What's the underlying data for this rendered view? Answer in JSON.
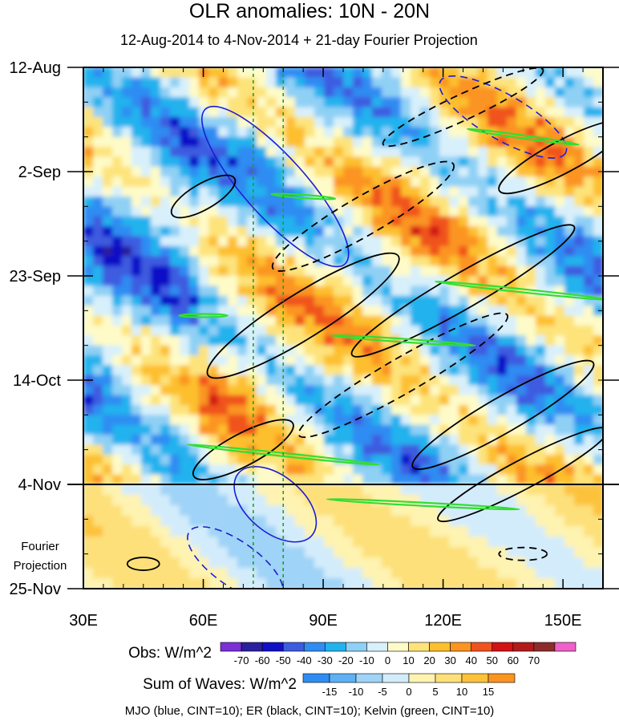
{
  "chart_data": {
    "type": "heatmap",
    "title": "OLR anomalies: 10N - 20N",
    "subtitle": "12-Aug-2014 to 4-Nov-2014 + 21-day Fourier Projection",
    "x_ticks": [
      {
        "value": 30,
        "label": "30E"
      },
      {
        "value": 60,
        "label": "60E"
      },
      {
        "value": 90,
        "label": "90E"
      },
      {
        "value": 120,
        "label": "120E"
      },
      {
        "value": 150,
        "label": "150E"
      }
    ],
    "xlim": [
      30,
      160
    ],
    "y_ticks": [
      {
        "value": 0,
        "label": "12-Aug"
      },
      {
        "value": 21,
        "label": "2-Sep"
      },
      {
        "value": 42,
        "label": "23-Sep"
      },
      {
        "value": 63,
        "label": "14-Oct"
      },
      {
        "value": 84,
        "label": "4-Nov"
      },
      {
        "value": 105,
        "label": "25-Nov"
      }
    ],
    "ylim": [
      0,
      105
    ],
    "projection_start_day": 84,
    "projection_label": [
      "Fourier",
      "Projection"
    ],
    "reference_lines_lon": [
      72.5,
      80
    ],
    "obs_colorbar": {
      "label": "Obs: W/m^2",
      "levels": [
        -70,
        -60,
        -50,
        -40,
        -30,
        -20,
        -10,
        0,
        10,
        20,
        30,
        40,
        50,
        60,
        70
      ],
      "colors": [
        "#7b2fd6",
        "#2a1f9e",
        "#1010c8",
        "#3c5ce0",
        "#2f8cf2",
        "#23b2ee",
        "#8fd0f5",
        "#d8f0fb",
        "#fefbc8",
        "#fde37a",
        "#fdbf2d",
        "#fb9420",
        "#f0531e",
        "#d21215",
        "#b31b1b",
        "#8e2c2c",
        "#f060c8"
      ]
    },
    "waves_colorbar": {
      "label": "Sum of Waves: W/m^2",
      "levels": [
        -15,
        -10,
        -5,
        0,
        5,
        10,
        15
      ],
      "colors": [
        "#2f8cf2",
        "#5fb0f5",
        "#9fd3f7",
        "#d3ecfb",
        "#fef3b0",
        "#fde07a",
        "#fcc23a",
        "#fb9420"
      ]
    },
    "legend_note": "MJO (blue, CINT=10); ER (black, CINT=10); Kelvin (green, CINT=10)",
    "series": [
      {
        "name": "MJO",
        "color": "#1c1cd6"
      },
      {
        "name": "ER",
        "color": "#000000"
      },
      {
        "name": "Kelvin",
        "color": "#33dd33"
      }
    ]
  }
}
